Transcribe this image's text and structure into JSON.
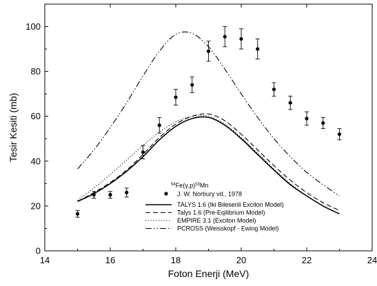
{
  "chart_data": {
    "type": "line",
    "xlabel": "Foton Enerji (MeV)",
    "ylabel": "Tesir Kesiti (mb)",
    "xlim": [
      14,
      24
    ],
    "ylim": [
      0,
      110
    ],
    "xticks": [
      14,
      16,
      18,
      20,
      22,
      24
    ],
    "yticks": [
      0,
      20,
      40,
      60,
      80,
      100
    ],
    "legend": {
      "placement": "bottom-center",
      "title_parts": {
        "a": "54",
        "b": "Fe(",
        "c": "γ",
        "d": ",p)",
        "e": "53",
        "f": "Mn"
      }
    },
    "experimental": {
      "name": "J. W. Norbury vd., 1978",
      "points": [
        {
          "x": 15.0,
          "y": 16.5,
          "err": 1.5
        },
        {
          "x": 15.5,
          "y": 25.0,
          "err": 1.5
        },
        {
          "x": 16.0,
          "y": 25.0,
          "err": 1.5
        },
        {
          "x": 16.5,
          "y": 26.0,
          "err": 2.0
        },
        {
          "x": 17.0,
          "y": 44.0,
          "err": 3.0
        },
        {
          "x": 17.5,
          "y": 56.0,
          "err": 3.5
        },
        {
          "x": 18.0,
          "y": 68.5,
          "err": 3.5
        },
        {
          "x": 18.5,
          "y": 74.0,
          "err": 3.5
        },
        {
          "x": 19.0,
          "y": 89.0,
          "err": 4.5
        },
        {
          "x": 19.5,
          "y": 95.5,
          "err": 4.5
        },
        {
          "x": 20.0,
          "y": 94.5,
          "err": 4.5
        },
        {
          "x": 20.5,
          "y": 90.0,
          "err": 4.5
        },
        {
          "x": 21.0,
          "y": 72.0,
          "err": 3.0
        },
        {
          "x": 21.5,
          "y": 66.0,
          "err": 3.0
        },
        {
          "x": 22.0,
          "y": 59.0,
          "err": 3.0
        },
        {
          "x": 22.5,
          "y": 57.0,
          "err": 2.5
        },
        {
          "x": 23.0,
          "y": 52.0,
          "err": 2.5
        }
      ]
    },
    "series": [
      {
        "name": "TALYS 1.6 (Iki Bilesenli Exciton Model)",
        "dash": "solid",
        "x": [
          15,
          15.5,
          16,
          16.5,
          17,
          17.5,
          18,
          18.5,
          19,
          19.5,
          20,
          20.5,
          21,
          21.5,
          22,
          22.5,
          23
        ],
        "y": [
          22,
          25.5,
          30,
          35.5,
          42,
          49.5,
          55.5,
          59,
          59.5,
          56,
          50,
          43,
          36,
          29.5,
          24.5,
          20,
          16.5
        ]
      },
      {
        "name": "Talys 1.6 (Pre-Eqilibrium Model)",
        "dash": "dashed",
        "x": [
          15,
          15.5,
          16,
          16.5,
          17,
          17.5,
          18,
          18.5,
          19,
          19.5,
          20,
          20.5,
          21,
          21.5,
          22,
          22.5,
          23
        ],
        "y": [
          22,
          26,
          30.5,
          36,
          43,
          50.5,
          56.5,
          60,
          61,
          58,
          52,
          45,
          38,
          31.5,
          26,
          21.5,
          18
        ]
      },
      {
        "name": "EMPIRE 3.1 (Exciton Model)",
        "dash": "dotted",
        "x": [
          15,
          15.5,
          16,
          16.5,
          17,
          17.5,
          18,
          18.5,
          19,
          19.5,
          20,
          20.5,
          21,
          21.5,
          22,
          22.5,
          23
        ],
        "y": [
          22.5,
          28,
          34,
          40.5,
          47,
          53,
          57.5,
          60,
          60,
          56.5,
          50.5,
          43.5,
          36.5,
          30,
          24.5,
          20,
          16.5
        ]
      },
      {
        "name": "PCROSS (Weisskopf - Ewing Model)",
        "dash": "dashdotdot",
        "x": [
          15,
          15.5,
          16,
          16.5,
          17,
          17.5,
          18,
          18.5,
          19,
          19.5,
          20,
          20.5,
          21,
          21.5,
          22,
          22.5,
          23
        ],
        "y": [
          36.5,
          45,
          55,
          66,
          78,
          89,
          96.5,
          97,
          91,
          81,
          70,
          59.5,
          50,
          42,
          35,
          29.5,
          24.5
        ]
      }
    ]
  }
}
